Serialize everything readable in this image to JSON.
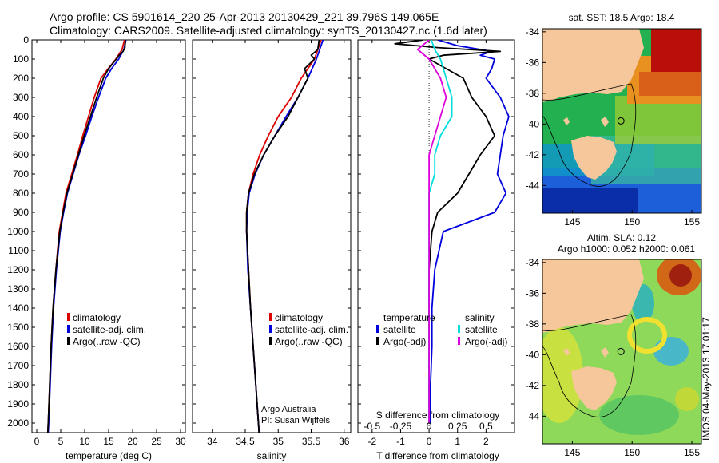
{
  "header": {
    "line1": "Argo profile: CS 5901614_220 25-Apr-2013 20130429_221 39.796S 149.065E",
    "line2": "Climatology: CARS2009. Satellite-adjusted climatology: synTS_20130427.nc (1.6d later)"
  },
  "colors": {
    "climatology": "#dd0000",
    "satellite": "#0000dd",
    "argo": "#000000",
    "satellite_salinity": "#00dddd",
    "argo_salinity": "#dd00dd",
    "land": "#f5c79a"
  },
  "credit": "IMOS 04-May-2013 17:01:17",
  "chart_data": [
    {
      "type": "line",
      "panel": "temperature",
      "xlabel": "temperature (deg C)",
      "xlim": [
        -1,
        31
      ],
      "xticks": [
        0,
        5,
        10,
        15,
        20,
        25,
        30
      ],
      "ylim": [
        0,
        2050
      ],
      "yticks": [
        0,
        100,
        200,
        300,
        400,
        500,
        600,
        700,
        800,
        900,
        1000,
        1100,
        1200,
        1300,
        1400,
        1500,
        1600,
        1700,
        1800,
        1900,
        2000
      ],
      "legend": [
        "climatology",
        "satellite-adj. clim.",
        "Argo(..raw -QC)"
      ],
      "series": [
        {
          "name": "climatology",
          "color": "#dd0000",
          "depth": [
            0,
            50,
            100,
            150,
            200,
            300,
            400,
            500,
            600,
            700,
            800,
            900,
            1000,
            1200,
            1400,
            1600,
            1800,
            2000,
            2050
          ],
          "values": [
            18.3,
            17.8,
            16.5,
            14.9,
            13.4,
            12.0,
            10.8,
            9.6,
            8.5,
            7.3,
            6.1,
            5.4,
            4.7,
            4.0,
            3.4,
            3.0,
            2.7,
            2.4,
            2.3
          ]
        },
        {
          "name": "satellite-adj. clim.",
          "color": "#0000dd",
          "depth": [
            0,
            50,
            100,
            150,
            200,
            300,
            400,
            500,
            600,
            700,
            800,
            900,
            1000,
            1200,
            1400,
            1600,
            1800,
            2000,
            2050
          ],
          "values": [
            18.6,
            18.2,
            17.1,
            15.6,
            14.4,
            12.9,
            11.5,
            10.2,
            8.8,
            7.6,
            6.4,
            5.6,
            4.9,
            4.1,
            3.5,
            3.1,
            2.8,
            2.5,
            2.4
          ]
        },
        {
          "name": "Argo(..raw -QC)",
          "color": "#000000",
          "depth": [
            0,
            40,
            60,
            80,
            100,
            150,
            200,
            300,
            400,
            500,
            600,
            700,
            800,
            900,
            1000,
            1200,
            1400,
            1600,
            1800,
            2000,
            2050
          ],
          "values": [
            18.5,
            18.4,
            18.0,
            17.2,
            16.6,
            15.0,
            13.9,
            12.5,
            11.2,
            9.9,
            8.7,
            7.5,
            6.3,
            5.5,
            4.8,
            4.0,
            3.4,
            3.0,
            2.7,
            2.4,
            2.3
          ]
        }
      ]
    },
    {
      "type": "line",
      "panel": "salinity",
      "xlabel": "salinity",
      "xlim": [
        33.7,
        36.1
      ],
      "xticks": [
        34,
        34.5,
        35,
        35.5,
        36
      ],
      "ylim": [
        0,
        2050
      ],
      "legend": [
        "climatology",
        "satellite-adj. clim.",
        "Argo(..raw -QC)"
      ],
      "annotation": [
        "Argo Australia",
        "PI: Susan Wijffels"
      ],
      "series": [
        {
          "name": "climatology",
          "color": "#dd0000",
          "depth": [
            0,
            50,
            100,
            200,
            300,
            400,
            500,
            600,
            700,
            800,
            900,
            1000,
            1200,
            1400,
            1600,
            1800,
            2000,
            2050
          ],
          "values": [
            35.65,
            35.6,
            35.55,
            35.35,
            35.2,
            35.0,
            34.85,
            34.72,
            34.62,
            34.55,
            34.52,
            34.52,
            34.55,
            34.58,
            34.62,
            34.66,
            34.7,
            34.71
          ]
        },
        {
          "name": "satellite-adj. clim.",
          "color": "#0000dd",
          "depth": [
            0,
            50,
            100,
            200,
            300,
            400,
            500,
            600,
            700,
            800,
            900,
            1000,
            1200,
            1400,
            1600,
            1800,
            2000,
            2050
          ],
          "values": [
            35.68,
            35.63,
            35.58,
            35.45,
            35.3,
            35.12,
            34.95,
            34.78,
            34.65,
            34.56,
            34.53,
            34.52,
            34.54,
            34.58,
            34.62,
            34.66,
            34.7,
            34.71
          ]
        },
        {
          "name": "Argo(..raw -QC)",
          "color": "#000000",
          "depth": [
            0,
            50,
            80,
            100,
            150,
            200,
            300,
            400,
            500,
            600,
            700,
            800,
            900,
            1000,
            1200,
            1400,
            1600,
            1800,
            2000,
            2050
          ],
          "values": [
            35.62,
            35.6,
            35.5,
            35.55,
            35.4,
            35.45,
            35.3,
            35.15,
            34.95,
            34.78,
            34.64,
            34.55,
            34.52,
            34.52,
            34.55,
            34.58,
            34.62,
            34.66,
            34.7,
            34.71
          ]
        }
      ]
    },
    {
      "type": "line",
      "panel": "difference",
      "xlabel": "T difference from climatology",
      "xlabel2": "S difference from climatology",
      "xlim": [
        -2.5,
        3.0
      ],
      "xticks": [
        -2,
        -1,
        0,
        1,
        2
      ],
      "xticks_salinity": [
        -0.5,
        -0.25,
        0,
        0.25,
        0.5
      ],
      "ylim": [
        0,
        2050
      ],
      "legend_titles": [
        "temperature",
        "salinity"
      ],
      "legend": [
        "satellite",
        "Argo(-adj)",
        "satellite",
        "Argo(-adj)"
      ],
      "series": [
        {
          "name": "temperature satellite",
          "color": "#0000dd",
          "depth": [
            0,
            30,
            60,
            80,
            100,
            150,
            200,
            300,
            400,
            500,
            600,
            700,
            800,
            900,
            1000,
            1200,
            1400,
            1600,
            1800,
            2000
          ],
          "values": [
            0.3,
            1.0,
            2.2,
            1.8,
            2.3,
            2.2,
            2.0,
            2.5,
            2.8,
            2.6,
            2.5,
            2.4,
            2.7,
            2.3,
            0.5,
            0.2,
            0.1,
            0.1,
            0.05,
            0.05
          ]
        },
        {
          "name": "temperature Argo(-adj)",
          "color": "#000000",
          "depth": [
            0,
            20,
            40,
            60,
            80,
            100,
            150,
            200,
            300,
            400,
            500,
            600,
            700,
            800,
            900,
            1000,
            1200,
            1400,
            1600,
            1800,
            2000
          ],
          "values": [
            -0.2,
            -1.2,
            0.3,
            2.5,
            0.5,
            0.0,
            0.6,
            1.2,
            1.5,
            2.0,
            2.3,
            1.8,
            1.4,
            1.0,
            0.3,
            0.1,
            0.0,
            0.0,
            0.0,
            0.0,
            0.0
          ]
        },
        {
          "name": "salinity satellite",
          "color": "#00dddd",
          "depth": [
            0,
            50,
            100,
            200,
            300,
            400,
            500,
            600,
            700,
            800,
            900,
            1000,
            1200,
            1400,
            1600,
            1800,
            2000
          ],
          "values": [
            0.02,
            0.05,
            0.1,
            0.15,
            0.2,
            0.2,
            0.1,
            0.05,
            0.05,
            0.0,
            0.0,
            0.0,
            0.0,
            0.0,
            0.0,
            0.0,
            0.0
          ]
        },
        {
          "name": "salinity Argo(-adj)",
          "color": "#dd00dd",
          "depth": [
            0,
            50,
            100,
            150,
            200,
            300,
            400,
            500,
            600,
            700,
            800,
            900,
            1000,
            1200,
            1400,
            1600,
            1800,
            2000
          ],
          "values": [
            0.0,
            -0.1,
            0.0,
            0.05,
            0.1,
            0.15,
            0.1,
            0.05,
            0.0,
            0.0,
            0.0,
            0.0,
            0.0,
            0.0,
            0.0,
            0.0,
            0.0,
            0.0
          ]
        }
      ]
    },
    {
      "type": "heatmap",
      "panel": "map-sst",
      "title": "sat. SST: 18.5 Argo: 18.4",
      "xlim": [
        142.5,
        155.8
      ],
      "ylim": [
        -45.8,
        -33.8
      ],
      "xticks": [
        145,
        150,
        155
      ],
      "yticks": [
        -34,
        -36,
        -38,
        -40,
        -42,
        -44
      ],
      "xtick_labels": [
        "145",
        "150",
        "155"
      ],
      "ytick_labels": [
        "-34",
        "-36",
        "-38",
        "-40",
        "-42",
        "-44"
      ],
      "argo_position": [
        149.065,
        -39.796
      ]
    },
    {
      "type": "heatmap",
      "panel": "map-sla",
      "title_lines": [
        "Altim. SLA: 0.12",
        "Argo h1000: 0.052 h2000: 0.061"
      ],
      "xlim": [
        142.5,
        155.8
      ],
      "ylim": [
        -45.8,
        -33.8
      ],
      "xticks": [
        145,
        150,
        155
      ],
      "yticks": [
        -34,
        -36,
        -38,
        -40,
        -42,
        -44
      ],
      "xtick_labels": [
        "145",
        "150",
        "155"
      ],
      "ytick_labels": [
        "-34",
        "-36",
        "-38",
        "-40",
        "-42",
        "-44"
      ],
      "argo_position": [
        149.065,
        -39.796
      ]
    }
  ]
}
